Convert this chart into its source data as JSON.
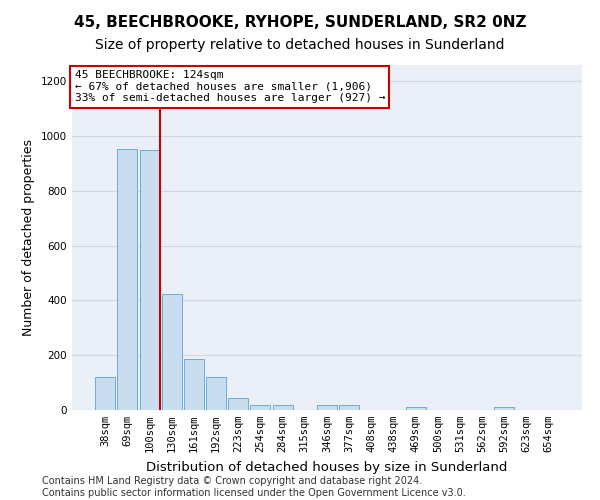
{
  "title": "45, BEECHBROOKE, RYHOPE, SUNDERLAND, SR2 0NZ",
  "subtitle": "Size of property relative to detached houses in Sunderland",
  "xlabel": "Distribution of detached houses by size in Sunderland",
  "ylabel": "Number of detached properties",
  "bar_color": "#c9ddf0",
  "bar_edge_color": "#6aaed6",
  "annotation_box_text": "45 BEECHBROOKE: 124sqm\n← 67% of detached houses are smaller (1,906)\n33% of semi-detached houses are larger (927) →",
  "annotation_box_color": "#ffffff",
  "annotation_box_edge_color": "#cc0000",
  "annotation_line_color": "#cc0000",
  "footer_text": "Contains HM Land Registry data © Crown copyright and database right 2024.\nContains public sector information licensed under the Open Government Licence v3.0.",
  "bin_labels": [
    "38sqm",
    "69sqm",
    "100sqm",
    "130sqm",
    "161sqm",
    "192sqm",
    "223sqm",
    "254sqm",
    "284sqm",
    "315sqm",
    "346sqm",
    "377sqm",
    "408sqm",
    "438sqm",
    "469sqm",
    "500sqm",
    "531sqm",
    "562sqm",
    "592sqm",
    "623sqm",
    "654sqm"
  ],
  "bar_heights": [
    120,
    955,
    950,
    425,
    185,
    120,
    45,
    20,
    20,
    0,
    20,
    20,
    0,
    0,
    10,
    0,
    0,
    0,
    10,
    0,
    0
  ],
  "ylim": [
    0,
    1260
  ],
  "yticks": [
    0,
    200,
    400,
    600,
    800,
    1000,
    1200
  ],
  "grid_color": "#d0d8e8",
  "title_fontsize": 11,
  "subtitle_fontsize": 10,
  "ylabel_fontsize": 9,
  "xlabel_fontsize": 9.5,
  "tick_fontsize": 7.5,
  "footer_fontsize": 7,
  "annotation_fontsize": 8,
  "bg_color": "#eaeff8",
  "red_line_bin_index": 2,
  "bar_width": 0.9
}
